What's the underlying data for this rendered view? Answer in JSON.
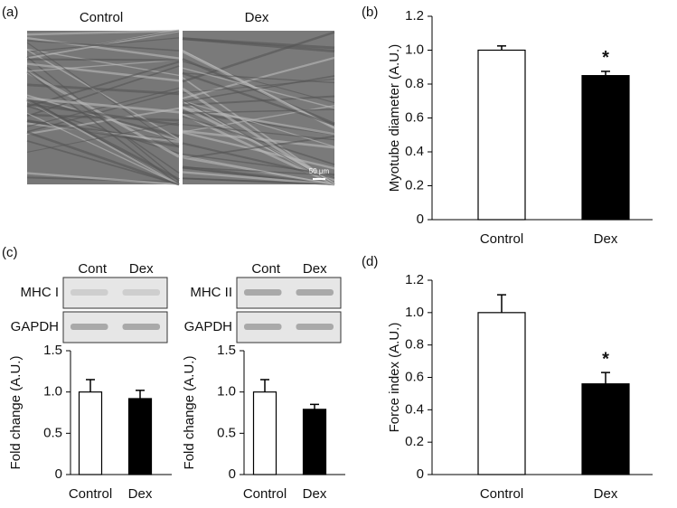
{
  "micrograph": {
    "panel_label": "(a)",
    "labels": [
      "Control",
      "Dex"
    ],
    "scale_bar": "50 μm"
  },
  "chart_data": [
    {
      "type": "bar",
      "panel_label": "(b)",
      "ylabel": "Myotube diameter (A.U.)",
      "categories": [
        "Control",
        "Dex"
      ],
      "values": [
        1.0,
        0.85
      ],
      "errors": [
        0.025,
        0.025
      ],
      "colors": [
        "#ffffff",
        "#000000"
      ],
      "annotations": [
        null,
        "*"
      ],
      "ylim": [
        0,
        1.2
      ],
      "yticks": [
        0,
        0.2,
        0.4,
        0.6,
        0.8,
        {
          "value": 1,
          "label": "1.0"
        },
        1.2
      ]
    },
    {
      "type": "bar",
      "panel_label": "(c)",
      "ylabel": "Fold change (A.U.)",
      "categories": [
        "Control",
        "Dex"
      ],
      "values": [
        1.0,
        0.92
      ],
      "errors": [
        0.15,
        0.1
      ],
      "colors": [
        "#ffffff",
        "#000000"
      ],
      "lanes": [
        "Cont",
        "Dex"
      ],
      "bands": [
        "MHC I",
        "GAPDH"
      ],
      "ylim": [
        0,
        1.5
      ],
      "yticks": [
        0,
        0.5,
        {
          "value": 1,
          "label": "1.0"
        },
        1.5
      ]
    },
    {
      "type": "bar",
      "ylabel": "Fold change (A.U.)",
      "categories": [
        "Control",
        "Dex"
      ],
      "values": [
        1.0,
        0.79
      ],
      "errors": [
        0.15,
        0.06
      ],
      "colors": [
        "#ffffff",
        "#000000"
      ],
      "lanes": [
        "Cont",
        "Dex"
      ],
      "bands": [
        "MHC II",
        "GAPDH"
      ],
      "ylim": [
        0,
        1.5
      ],
      "yticks": [
        0,
        0.5,
        {
          "value": 1,
          "label": "1.0"
        },
        1.5
      ]
    },
    {
      "type": "bar",
      "panel_label": "(d)",
      "ylabel": "Force index (A.U.)",
      "categories": [
        "Control",
        "Dex"
      ],
      "values": [
        1.0,
        0.56
      ],
      "errors": [
        0.11,
        0.07
      ],
      "colors": [
        "#ffffff",
        "#000000"
      ],
      "annotations": [
        null,
        "*"
      ],
      "ylim": [
        0,
        1.2
      ],
      "yticks": [
        0,
        0.2,
        0.4,
        0.6,
        0.8,
        {
          "value": 1,
          "label": "1.0"
        },
        1.2
      ]
    }
  ]
}
